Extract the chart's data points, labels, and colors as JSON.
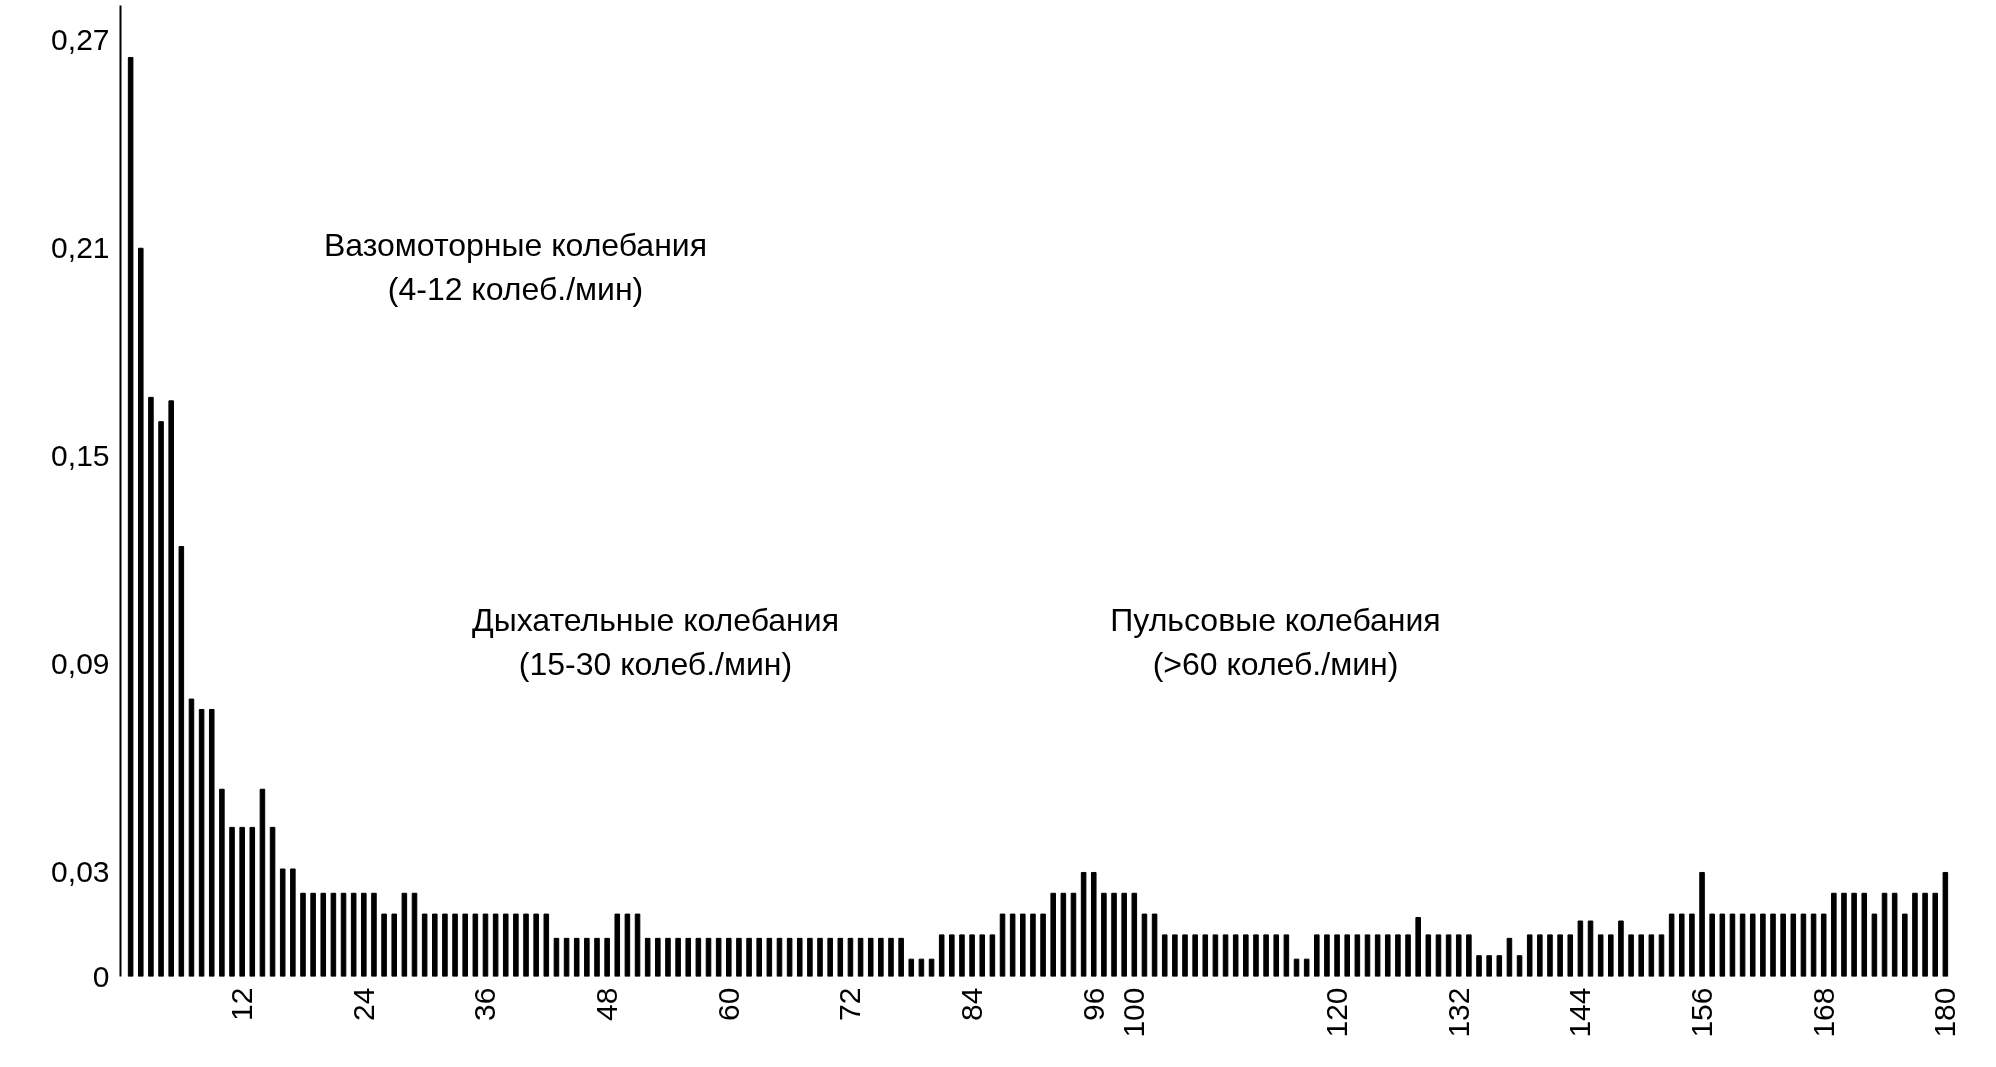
{
  "chart_data": {
    "type": "bar",
    "color": "#000000",
    "grid": false,
    "x": [
      1,
      2,
      3,
      4,
      5,
      6,
      7,
      8,
      9,
      10,
      11,
      12,
      13,
      14,
      15,
      16,
      17,
      18,
      19,
      20,
      21,
      22,
      23,
      24,
      25,
      26,
      27,
      28,
      29,
      30,
      31,
      32,
      33,
      34,
      35,
      36,
      37,
      38,
      39,
      40,
      41,
      42,
      43,
      44,
      45,
      46,
      47,
      48,
      49,
      50,
      51,
      52,
      53,
      54,
      55,
      56,
      57,
      58,
      59,
      60,
      61,
      62,
      63,
      64,
      65,
      66,
      67,
      68,
      69,
      70,
      71,
      72,
      73,
      74,
      75,
      76,
      77,
      78,
      79,
      80,
      81,
      82,
      83,
      84,
      85,
      86,
      87,
      88,
      89,
      90,
      91,
      92,
      93,
      94,
      95,
      96,
      97,
      98,
      99,
      100,
      101,
      102,
      103,
      104,
      105,
      106,
      107,
      108,
      109,
      110,
      111,
      112,
      113,
      114,
      115,
      116,
      117,
      118,
      119,
      120,
      121,
      122,
      123,
      124,
      125,
      126,
      127,
      128,
      129,
      130,
      131,
      132,
      133,
      134,
      135,
      136,
      137,
      138,
      139,
      140,
      141,
      142,
      143,
      144,
      145,
      146,
      147,
      148,
      149,
      150,
      151,
      152,
      153,
      154,
      155,
      156,
      157,
      158,
      159,
      160,
      161,
      162,
      163,
      164,
      165,
      166,
      167,
      168,
      169,
      170,
      171,
      172,
      173,
      174,
      175,
      176,
      177,
      178,
      179,
      180
    ],
    "values": [
      0.265,
      0.21,
      0.167,
      0.16,
      0.166,
      0.124,
      0.08,
      0.077,
      0.077,
      0.054,
      0.043,
      0.043,
      0.043,
      0.054,
      0.043,
      0.031,
      0.031,
      0.024,
      0.024,
      0.024,
      0.024,
      0.024,
      0.024,
      0.024,
      0.024,
      0.018,
      0.018,
      0.024,
      0.024,
      0.018,
      0.018,
      0.018,
      0.018,
      0.018,
      0.018,
      0.018,
      0.018,
      0.018,
      0.018,
      0.018,
      0.018,
      0.018,
      0.011,
      0.011,
      0.011,
      0.011,
      0.011,
      0.011,
      0.018,
      0.018,
      0.018,
      0.011,
      0.011,
      0.011,
      0.011,
      0.011,
      0.011,
      0.011,
      0.011,
      0.011,
      0.011,
      0.011,
      0.011,
      0.011,
      0.011,
      0.011,
      0.011,
      0.011,
      0.011,
      0.011,
      0.011,
      0.011,
      0.011,
      0.011,
      0.011,
      0.011,
      0.011,
      0.005,
      0.005,
      0.005,
      0.012,
      0.012,
      0.012,
      0.012,
      0.012,
      0.012,
      0.018,
      0.018,
      0.018,
      0.018,
      0.018,
      0.024,
      0.024,
      0.024,
      0.03,
      0.03,
      0.024,
      0.024,
      0.024,
      0.024,
      0.018,
      0.018,
      0.012,
      0.012,
      0.012,
      0.012,
      0.012,
      0.012,
      0.012,
      0.012,
      0.012,
      0.012,
      0.012,
      0.012,
      0.012,
      0.005,
      0.005,
      0.012,
      0.012,
      0.012,
      0.012,
      0.012,
      0.012,
      0.012,
      0.012,
      0.012,
      0.012,
      0.017,
      0.012,
      0.012,
      0.012,
      0.012,
      0.012,
      0.006,
      0.006,
      0.006,
      0.011,
      0.006,
      0.012,
      0.012,
      0.012,
      0.012,
      0.012,
      0.016,
      0.016,
      0.012,
      0.012,
      0.016,
      0.012,
      0.012,
      0.012,
      0.012,
      0.018,
      0.018,
      0.018,
      0.03,
      0.018,
      0.018,
      0.018,
      0.018,
      0.018,
      0.018,
      0.018,
      0.018,
      0.018,
      0.018,
      0.018,
      0.018,
      0.024,
      0.024,
      0.024,
      0.024,
      0.018,
      0.024,
      0.024,
      0.018,
      0.024,
      0.024,
      0.024,
      0.03
    ],
    "xlim": [
      0,
      181
    ],
    "xticks": [
      12,
      24,
      36,
      48,
      60,
      72,
      84,
      96,
      100,
      120,
      132,
      144,
      156,
      168,
      180
    ],
    "ylim": [
      0,
      0.28
    ],
    "yticks": [
      0,
      {
        "value": 0.03,
        "label": "0,03"
      },
      {
        "value": 0.09,
        "label": "0,09"
      },
      {
        "value": 0.15,
        "label": "0,15"
      },
      {
        "value": 0.21,
        "label": "0,21"
      },
      {
        "value": 0.27,
        "label": "0,27"
      }
    ],
    "annotations": [
      "Вазомоторные колебания\n(4-12 колеб./мин)",
      "Дыхательные колебания\n(15-30 колеб./мин)",
      "Пульсовые колебания\n(>60 колеб./мин)"
    ]
  }
}
